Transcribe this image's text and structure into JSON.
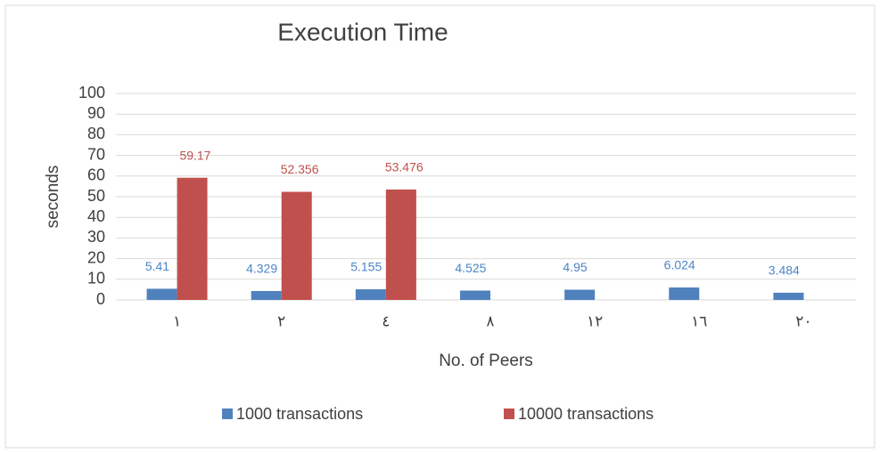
{
  "chart_data": {
    "type": "bar",
    "title": "Execution Time",
    "x_label": "No. of Peers",
    "y_label": "seconds",
    "categories": [
      "١",
      "٢",
      "٤",
      "٨",
      "١٢",
      "١٦",
      "٢٠"
    ],
    "series": [
      {
        "name": "1000 transactions",
        "color": "#4f81bd",
        "label_color": "#4a86c8",
        "values": [
          5.41,
          4.329,
          5.155,
          4.525,
          4.95,
          6.024,
          3.484
        ]
      },
      {
        "name": "10000 transactions",
        "color": "#c0504d",
        "label_color": "#c0504d",
        "values": [
          59.17,
          52.356,
          53.476,
          null,
          null,
          null,
          null
        ]
      }
    ],
    "ylim": [
      0,
      100
    ],
    "yticks": [
      0,
      10,
      20,
      30,
      40,
      50,
      60,
      70,
      80,
      90,
      100
    ],
    "grid": true,
    "legend": "bottom"
  }
}
